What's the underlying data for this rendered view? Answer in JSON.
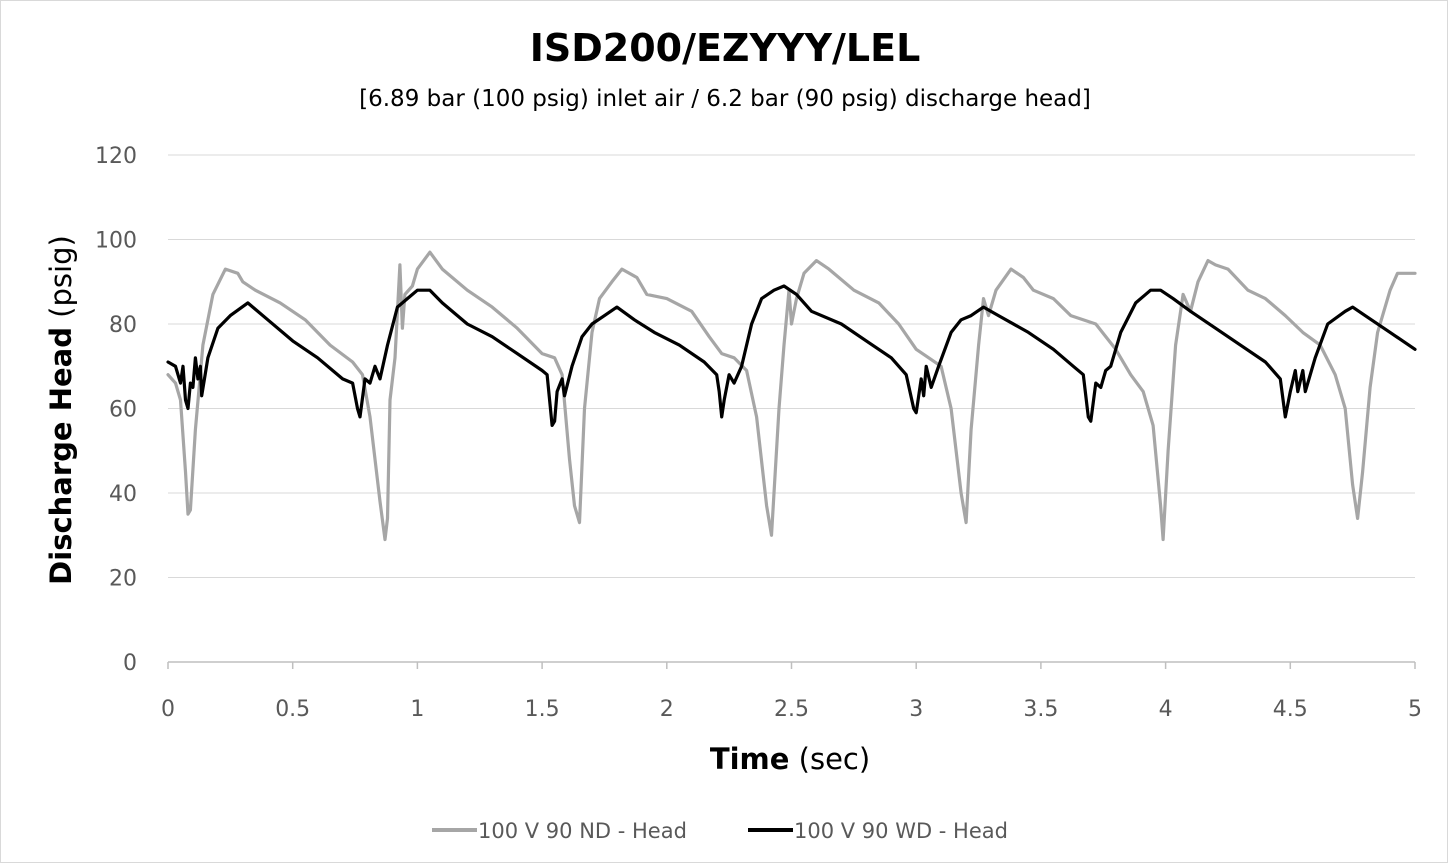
{
  "chart_data": {
    "type": "line",
    "title": "ISD200/EZYYY/LEL",
    "subtitle": "[6.89 bar (100 psig) inlet air / 6.2 bar (90 psig) discharge head]",
    "xlabel": {
      "bold": "Time",
      "unit": " (sec)"
    },
    "ylabel": {
      "bold": "Discharge Head",
      "unit": " (psig)"
    },
    "xlim": [
      0,
      5
    ],
    "ylim": [
      0,
      120
    ],
    "xticks": [
      "0",
      "0.5",
      "1",
      "1.5",
      "2",
      "2.5",
      "3",
      "3.5",
      "4",
      "4.5",
      "5"
    ],
    "yticks": [
      "0",
      "20",
      "40",
      "60",
      "80",
      "100",
      "120"
    ],
    "grid": "horizontal",
    "legend": "bottom",
    "series": [
      {
        "name": "100 V 90 ND - Head",
        "color": "#a6a6a6",
        "points": [
          [
            0,
            68
          ],
          [
            0.03,
            66
          ],
          [
            0.05,
            62
          ],
          [
            0.07,
            45
          ],
          [
            0.08,
            35
          ],
          [
            0.09,
            36
          ],
          [
            0.11,
            55
          ],
          [
            0.14,
            75
          ],
          [
            0.18,
            87
          ],
          [
            0.23,
            93
          ],
          [
            0.28,
            92
          ],
          [
            0.3,
            90
          ],
          [
            0.35,
            88
          ],
          [
            0.45,
            85
          ],
          [
            0.55,
            81
          ],
          [
            0.65,
            75
          ],
          [
            0.74,
            71
          ],
          [
            0.78,
            68
          ],
          [
            0.81,
            58
          ],
          [
            0.85,
            38
          ],
          [
            0.87,
            29
          ],
          [
            0.88,
            34
          ],
          [
            0.89,
            62
          ],
          [
            0.91,
            72
          ],
          [
            0.93,
            94
          ],
          [
            0.94,
            79
          ],
          [
            0.95,
            87
          ],
          [
            0.98,
            89
          ],
          [
            1.0,
            93
          ],
          [
            1.05,
            97
          ],
          [
            1.1,
            93
          ],
          [
            1.2,
            88
          ],
          [
            1.3,
            84
          ],
          [
            1.4,
            79
          ],
          [
            1.5,
            73
          ],
          [
            1.55,
            72
          ],
          [
            1.58,
            68
          ],
          [
            1.61,
            48
          ],
          [
            1.63,
            37
          ],
          [
            1.65,
            33
          ],
          [
            1.67,
            60
          ],
          [
            1.7,
            78
          ],
          [
            1.73,
            86
          ],
          [
            1.78,
            90
          ],
          [
            1.82,
            93
          ],
          [
            1.88,
            91
          ],
          [
            1.92,
            87
          ],
          [
            2.0,
            86
          ],
          [
            2.1,
            83
          ],
          [
            2.17,
            77
          ],
          [
            2.22,
            73
          ],
          [
            2.27,
            72
          ],
          [
            2.32,
            69
          ],
          [
            2.36,
            58
          ],
          [
            2.4,
            37
          ],
          [
            2.42,
            30
          ],
          [
            2.45,
            60
          ],
          [
            2.47,
            75
          ],
          [
            2.49,
            88
          ],
          [
            2.5,
            80
          ],
          [
            2.52,
            86
          ],
          [
            2.55,
            92
          ],
          [
            2.6,
            95
          ],
          [
            2.65,
            93
          ],
          [
            2.75,
            88
          ],
          [
            2.85,
            85
          ],
          [
            2.93,
            80
          ],
          [
            3.0,
            74
          ],
          [
            3.05,
            72
          ],
          [
            3.1,
            70
          ],
          [
            3.14,
            60
          ],
          [
            3.18,
            40
          ],
          [
            3.2,
            33
          ],
          [
            3.22,
            55
          ],
          [
            3.25,
            75
          ],
          [
            3.27,
            86
          ],
          [
            3.29,
            82
          ],
          [
            3.32,
            88
          ],
          [
            3.38,
            93
          ],
          [
            3.43,
            91
          ],
          [
            3.47,
            88
          ],
          [
            3.55,
            86
          ],
          [
            3.62,
            82
          ],
          [
            3.72,
            80
          ],
          [
            3.8,
            74
          ],
          [
            3.86,
            68
          ],
          [
            3.91,
            64
          ],
          [
            3.95,
            56
          ],
          [
            3.98,
            37
          ],
          [
            3.99,
            29
          ],
          [
            4.01,
            50
          ],
          [
            4.04,
            75
          ],
          [
            4.07,
            87
          ],
          [
            4.1,
            83
          ],
          [
            4.13,
            90
          ],
          [
            4.17,
            95
          ],
          [
            4.2,
            94
          ],
          [
            4.25,
            93
          ],
          [
            4.33,
            88
          ],
          [
            4.4,
            86
          ],
          [
            4.48,
            82
          ],
          [
            4.55,
            78
          ],
          [
            4.62,
            75
          ],
          [
            4.68,
            68
          ],
          [
            4.72,
            60
          ],
          [
            4.75,
            42
          ],
          [
            4.77,
            34
          ],
          [
            4.79,
            45
          ],
          [
            4.82,
            65
          ],
          [
            4.85,
            78
          ],
          [
            4.9,
            88
          ],
          [
            4.93,
            92
          ],
          [
            4.97,
            92
          ],
          [
            5.0,
            92
          ]
        ]
      },
      {
        "name": "100 V 90 WD - Head",
        "color": "#000000",
        "points": [
          [
            0,
            71
          ],
          [
            0.03,
            70
          ],
          [
            0.05,
            66
          ],
          [
            0.06,
            70
          ],
          [
            0.07,
            62
          ],
          [
            0.08,
            60
          ],
          [
            0.09,
            66
          ],
          [
            0.1,
            65
          ],
          [
            0.11,
            72
          ],
          [
            0.12,
            67
          ],
          [
            0.13,
            70
          ],
          [
            0.135,
            63
          ],
          [
            0.16,
            72
          ],
          [
            0.2,
            79
          ],
          [
            0.25,
            82
          ],
          [
            0.32,
            85
          ],
          [
            0.4,
            81
          ],
          [
            0.5,
            76
          ],
          [
            0.6,
            72
          ],
          [
            0.7,
            67
          ],
          [
            0.74,
            66
          ],
          [
            0.76,
            60
          ],
          [
            0.77,
            58
          ],
          [
            0.79,
            67
          ],
          [
            0.81,
            66
          ],
          [
            0.83,
            70
          ],
          [
            0.85,
            67
          ],
          [
            0.88,
            75
          ],
          [
            0.92,
            84
          ],
          [
            0.96,
            86
          ],
          [
            1.0,
            88
          ],
          [
            1.05,
            88
          ],
          [
            1.1,
            85
          ],
          [
            1.2,
            80
          ],
          [
            1.3,
            77
          ],
          [
            1.4,
            73
          ],
          [
            1.5,
            69
          ],
          [
            1.52,
            68
          ],
          [
            1.54,
            56
          ],
          [
            1.55,
            57
          ],
          [
            1.56,
            64
          ],
          [
            1.58,
            67
          ],
          [
            1.59,
            63
          ],
          [
            1.62,
            70
          ],
          [
            1.66,
            77
          ],
          [
            1.7,
            80
          ],
          [
            1.75,
            82
          ],
          [
            1.8,
            84
          ],
          [
            1.87,
            81
          ],
          [
            1.95,
            78
          ],
          [
            2.05,
            75
          ],
          [
            2.15,
            71
          ],
          [
            2.2,
            68
          ],
          [
            2.21,
            64
          ],
          [
            2.22,
            58
          ],
          [
            2.23,
            62
          ],
          [
            2.25,
            68
          ],
          [
            2.27,
            66
          ],
          [
            2.3,
            70
          ],
          [
            2.34,
            80
          ],
          [
            2.38,
            86
          ],
          [
            2.43,
            88
          ],
          [
            2.47,
            89
          ],
          [
            2.52,
            87
          ],
          [
            2.58,
            83
          ],
          [
            2.7,
            80
          ],
          [
            2.8,
            76
          ],
          [
            2.9,
            72
          ],
          [
            2.96,
            68
          ],
          [
            2.99,
            60
          ],
          [
            3.0,
            59
          ],
          [
            3.02,
            67
          ],
          [
            3.03,
            63
          ],
          [
            3.04,
            70
          ],
          [
            3.06,
            65
          ],
          [
            3.09,
            70
          ],
          [
            3.14,
            78
          ],
          [
            3.18,
            81
          ],
          [
            3.22,
            82
          ],
          [
            3.27,
            84
          ],
          [
            3.33,
            82
          ],
          [
            3.45,
            78
          ],
          [
            3.55,
            74
          ],
          [
            3.63,
            70
          ],
          [
            3.67,
            68
          ],
          [
            3.69,
            58
          ],
          [
            3.7,
            57
          ],
          [
            3.72,
            66
          ],
          [
            3.74,
            65
          ],
          [
            3.76,
            69
          ],
          [
            3.78,
            70
          ],
          [
            3.82,
            78
          ],
          [
            3.88,
            85
          ],
          [
            3.94,
            88
          ],
          [
            3.98,
            88
          ],
          [
            4.03,
            86
          ],
          [
            4.1,
            83
          ],
          [
            4.2,
            79
          ],
          [
            4.3,
            75
          ],
          [
            4.4,
            71
          ],
          [
            4.46,
            67
          ],
          [
            4.48,
            58
          ],
          [
            4.5,
            64
          ],
          [
            4.52,
            69
          ],
          [
            4.53,
            64
          ],
          [
            4.55,
            69
          ],
          [
            4.56,
            64
          ],
          [
            4.6,
            72
          ],
          [
            4.65,
            80
          ],
          [
            4.72,
            83
          ],
          [
            4.75,
            84
          ],
          [
            4.8,
            82
          ],
          [
            4.9,
            78
          ],
          [
            5.0,
            74
          ]
        ]
      }
    ]
  }
}
